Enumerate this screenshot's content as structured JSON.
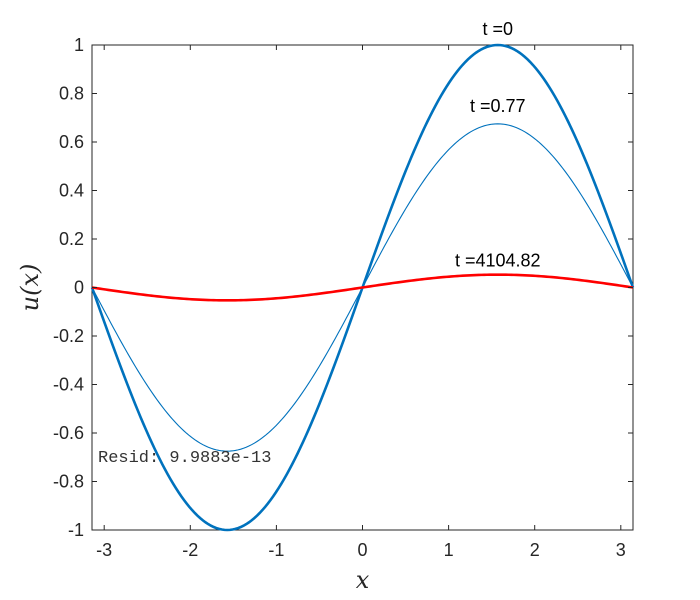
{
  "chart_data": {
    "type": "line",
    "xlabel": "x",
    "ylabel": "u(x)",
    "xlim": [
      -3.14159,
      3.14159
    ],
    "ylim": [
      -1,
      1
    ],
    "xticks": [
      "-3",
      "-2",
      "-1",
      "0",
      "1",
      "2",
      "3"
    ],
    "xtick_values": [
      -3,
      -2,
      -1,
      0,
      1,
      2,
      3
    ],
    "yticks": [
      "-1",
      "-0.8",
      "-0.6",
      "-0.4",
      "-0.2",
      "0",
      "0.2",
      "0.4",
      "0.6",
      "0.8",
      "1"
    ],
    "ytick_values": [
      -1,
      -0.8,
      -0.6,
      -0.4,
      -0.2,
      0,
      0.2,
      0.4,
      0.6,
      0.8,
      1
    ],
    "grid": false,
    "annotation": "Resid: 9.9883e-13",
    "series": [
      {
        "label": "t =0",
        "function": "sin(x)",
        "amplitude": 1.0,
        "color": "#0072BD",
        "weight": "thick"
      },
      {
        "label": "t =0.77",
        "function": "sin(x)",
        "amplitude": 0.675,
        "color": "#0072BD",
        "weight": "thin"
      },
      {
        "label": "t =4104.82",
        "function": "sin(x)",
        "amplitude": 0.053,
        "color": "#FF0000",
        "weight": "thick"
      }
    ]
  }
}
